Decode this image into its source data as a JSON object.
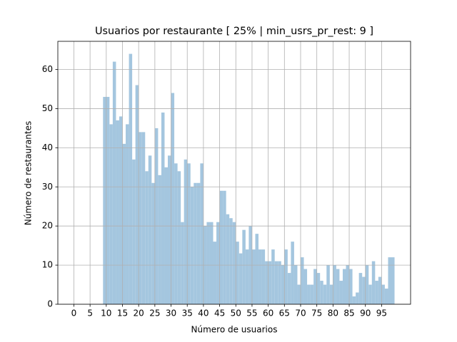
{
  "chart_data": {
    "type": "histogram",
    "title": "Usuarios por restaurante [ 25% | min_usrs_pr_rest: 9 ]",
    "x_label": "Número de usuarios",
    "y_label": "Número de restaurantes",
    "bins": [
      0,
      1,
      2,
      3,
      4,
      5,
      6,
      7,
      8,
      9,
      10,
      11,
      12,
      13,
      14,
      15,
      16,
      17,
      18,
      19,
      20,
      21,
      22,
      23,
      24,
      25,
      26,
      27,
      28,
      29,
      30,
      31,
      32,
      33,
      34,
      35,
      36,
      37,
      38,
      39,
      40,
      41,
      42,
      43,
      44,
      45,
      46,
      47,
      48,
      49,
      50,
      51,
      52,
      53,
      54,
      55,
      56,
      57,
      58,
      59,
      60,
      61,
      62,
      63,
      64,
      65,
      66,
      67,
      68,
      69,
      70,
      71,
      72,
      73,
      74,
      75,
      76,
      77,
      78,
      79,
      80,
      81,
      82,
      83,
      84,
      85,
      86,
      87,
      88,
      89,
      90,
      91,
      92,
      93,
      94,
      95,
      96,
      97,
      98,
      99
    ],
    "counts": [
      0,
      0,
      0,
      0,
      0,
      0,
      0,
      0,
      0,
      53,
      53,
      46,
      62,
      47,
      48,
      41,
      46,
      64,
      37,
      56,
      44,
      44,
      34,
      38,
      31,
      45,
      33,
      49,
      35,
      38,
      54,
      36,
      34,
      21,
      37,
      36,
      30,
      31,
      31,
      36,
      20,
      21,
      21,
      16,
      21,
      29,
      29,
      23,
      22,
      21,
      16,
      13,
      19,
      14,
      20,
      14,
      18,
      14,
      14,
      11,
      11,
      14,
      11,
      11,
      10,
      14,
      8,
      16,
      10,
      5,
      12,
      9,
      5,
      5,
      9,
      8,
      6,
      5,
      10,
      5,
      10,
      9,
      6,
      9,
      10,
      9,
      2,
      3,
      8,
      7,
      10,
      5,
      11,
      6,
      7,
      5,
      4,
      12,
      12
    ],
    "color": "#a4c6df",
    "xlim": [
      -4.95,
      103.95
    ],
    "ylim": [
      0,
      67.2
    ],
    "xticks": [
      0,
      5,
      10,
      15,
      20,
      25,
      30,
      35,
      40,
      45,
      50,
      55,
      60,
      65,
      70,
      75,
      80,
      85,
      90,
      95
    ],
    "yticks": [
      0,
      10,
      20,
      30,
      40,
      50,
      60
    ],
    "grid": true
  }
}
